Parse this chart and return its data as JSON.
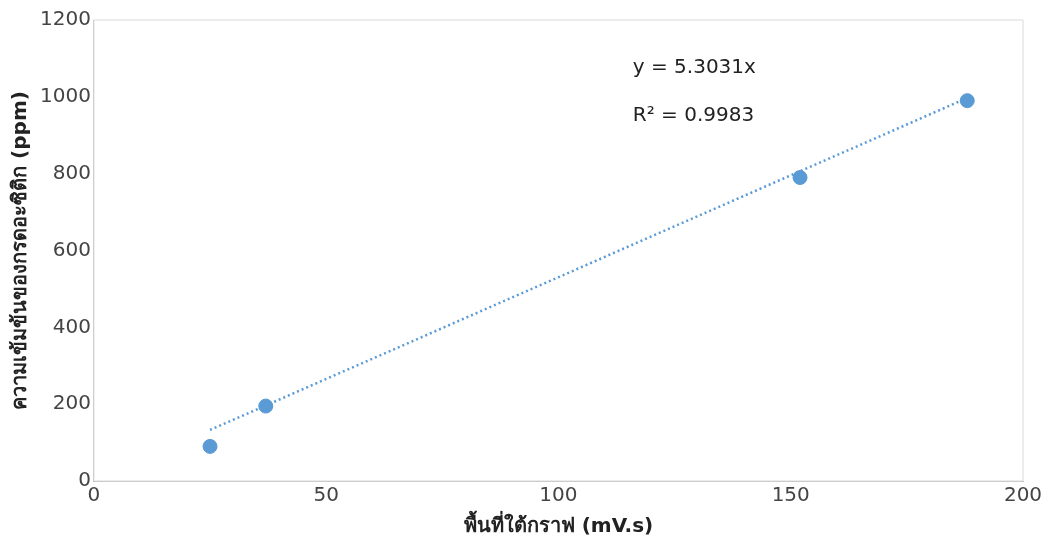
{
  "chart_data": {
    "type": "scatter",
    "xlabel": "พื้นที่ใต้กราฟ (mV.s)",
    "ylabel": "ความเข้มข้นของกรดอะซิติก (ppm)",
    "annotations": [
      "y = 5.3031x",
      "R² = 0.9983"
    ],
    "x": [
      25,
      37,
      152,
      188
    ],
    "series": [
      {
        "type": "scatter",
        "color": "#5b9bd5",
        "values": [
          90,
          195,
          790,
          990
        ],
        "marker": "circle"
      },
      {
        "type": "line",
        "color": "#5b9bd5",
        "x": [
          25,
          188
        ],
        "values": [
          133,
          997
        ],
        "line_style": "dotted",
        "marker": "none"
      }
    ],
    "xlim": [
      0,
      200
    ],
    "xticks": [
      0,
      50,
      100,
      150,
      200
    ],
    "ylim": [
      0,
      1200
    ],
    "yticks": [
      0,
      200,
      400,
      600,
      800,
      1000,
      1200
    ],
    "grid": false,
    "legend": false
  }
}
